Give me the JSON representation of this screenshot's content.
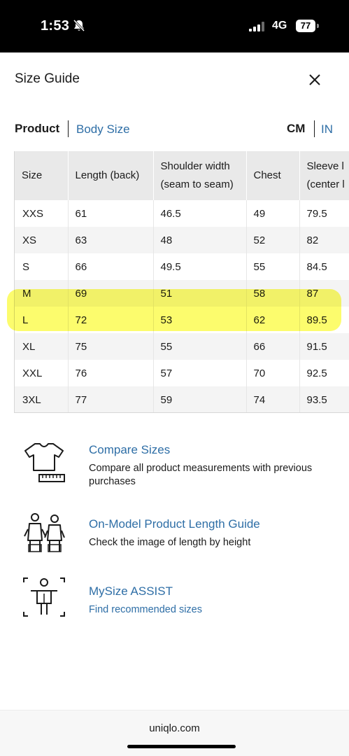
{
  "status": {
    "time": "1:53",
    "network": "4G",
    "battery": "77",
    "icons": [
      "bell-slash-icon",
      "signal-icon",
      "battery-icon"
    ]
  },
  "header": {
    "title": "Size Guide",
    "close_icon": "close-icon"
  },
  "tabs": {
    "product": "Product",
    "body_size": "Body Size",
    "unit_cm": "CM",
    "unit_in": "IN"
  },
  "table": {
    "headers": {
      "size": "Size",
      "length": "Length (back)",
      "shoulder_line1": "Shoulder width",
      "shoulder_line2": "(seam to seam)",
      "chest": "Chest",
      "sleeve_line1": "Sleeve l",
      "sleeve_line2": "(center l"
    },
    "rows": [
      [
        "XXS",
        "61",
        "46.5",
        "49",
        "79.5"
      ],
      [
        "XS",
        "63",
        "48",
        "52",
        "82"
      ],
      [
        "S",
        "66",
        "49.5",
        "55",
        "84.5"
      ],
      [
        "M",
        "69",
        "51",
        "58",
        "87"
      ],
      [
        "L",
        "72",
        "53",
        "62",
        "89.5"
      ],
      [
        "XL",
        "75",
        "55",
        "66",
        "91.5"
      ],
      [
        "XXL",
        "76",
        "57",
        "70",
        "92.5"
      ],
      [
        "3XL",
        "77",
        "59",
        "74",
        "93.5"
      ]
    ],
    "highlight_color": "#fafa14"
  },
  "features": {
    "compare": {
      "title": "Compare Sizes",
      "desc": "Compare all product measurements with previous purchases",
      "icon": "tshirt-ruler-icon"
    },
    "on_model": {
      "title": "On-Model Product Length Guide",
      "desc": "Check the image of length by height",
      "icon": "models-icon"
    },
    "mysize": {
      "title": "MySize ASSIST",
      "link": "Find recommended sizes",
      "icon": "body-scan-icon"
    }
  },
  "footer": {
    "url": "uniqlo.com"
  },
  "colors": {
    "link": "#2e6ea6",
    "header_bg": "#e9e9e9",
    "stripe": "#f4f4f4"
  }
}
